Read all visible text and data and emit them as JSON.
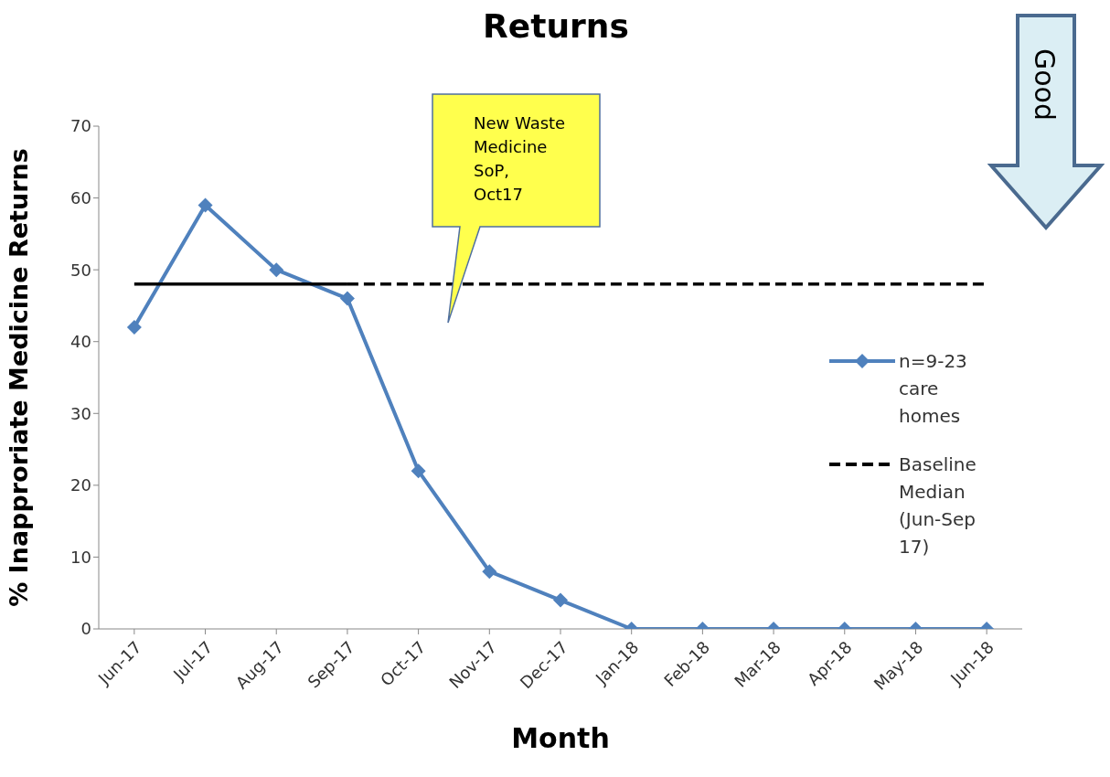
{
  "chart_data": {
    "type": "line",
    "title": "Returns",
    "xlabel": "Month",
    "ylabel": "% Inapproriate Medicine Returns",
    "categories": [
      "Jun-17",
      "Jul-17",
      "Aug-17",
      "Sep-17",
      "Oct-17",
      "Nov-17",
      "Dec-17",
      "Jan-18",
      "Feb-18",
      "Mar-18",
      "Apr-18",
      "May-18",
      "Jun-18"
    ],
    "series": [
      {
        "name": "n=9-23 care homes",
        "color": "#4f81bd",
        "marker": "diamond",
        "line_style": "solid",
        "values": [
          42,
          59,
          50,
          46,
          22,
          8,
          4,
          0,
          0,
          0,
          0,
          0,
          0
        ]
      },
      {
        "color": "#000000",
        "marker": "none",
        "line_style": "solid",
        "values": [
          48,
          48,
          48,
          48,
          null,
          null,
          null,
          null,
          null,
          null,
          null,
          null,
          null
        ]
      },
      {
        "name": "Baseline Median (Jun-Sep 17)",
        "color": "#000000",
        "marker": "none",
        "line_style": "dashed",
        "values": [
          null,
          null,
          null,
          48,
          48,
          48,
          48,
          48,
          48,
          48,
          48,
          48,
          48
        ]
      }
    ],
    "ylim": [
      0,
      70
    ],
    "yticks": [
      0,
      10,
      20,
      30,
      40,
      50,
      60,
      70
    ],
    "grid": false,
    "legend": "right",
    "annotations": [
      "New Waste Medicine SoP, Oct17",
      "Good"
    ]
  }
}
